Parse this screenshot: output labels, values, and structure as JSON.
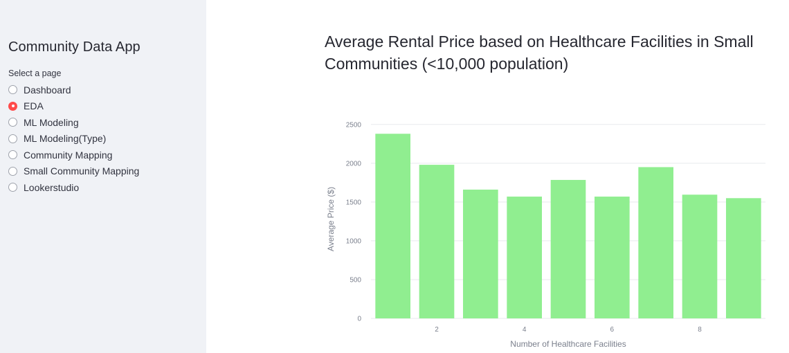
{
  "sidebar": {
    "app_title": "Community Data App",
    "radio_label": "Select a page",
    "items": [
      {
        "label": "Dashboard",
        "selected": false
      },
      {
        "label": "EDA",
        "selected": true
      },
      {
        "label": "ML Modeling",
        "selected": false
      },
      {
        "label": "ML Modeling(Type)",
        "selected": false
      },
      {
        "label": "Community Mapping",
        "selected": false
      },
      {
        "label": "Small Community Mapping",
        "selected": false
      },
      {
        "label": "Lookerstudio",
        "selected": false
      }
    ],
    "accent_color": "#ff4b4b"
  },
  "chart_data": {
    "type": "bar",
    "title": "Average Rental Price based on Healthcare Facilities in Small Communities (<10,000 population)",
    "xlabel": "Number of Healthcare Facilities",
    "ylabel": "Average Price ($)",
    "x": [
      1,
      2,
      3,
      4,
      5,
      6,
      7,
      8,
      9
    ],
    "values": [
      2380,
      1980,
      1660,
      1570,
      1785,
      1570,
      1950,
      1595,
      1550
    ],
    "xlim": [
      0.5,
      9.5
    ],
    "ylim": [
      0,
      2650
    ],
    "x_ticks": [
      2,
      4,
      6,
      8
    ],
    "y_ticks": [
      0,
      500,
      1000,
      1500,
      2000,
      2500
    ],
    "bar_color": "#90ee90",
    "grid": true
  }
}
